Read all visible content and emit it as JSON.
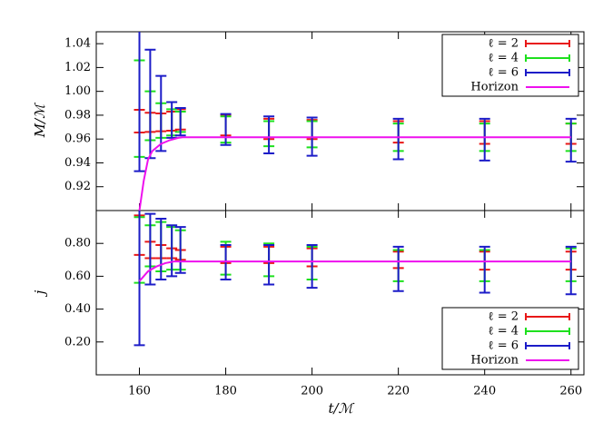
{
  "chart_data": [
    {
      "type": "errorbar",
      "ylabel": "M/ℳ",
      "xlim": [
        150,
        263
      ],
      "ylim": [
        0.9,
        1.05
      ],
      "yticks": [
        0.92,
        0.94,
        0.96,
        0.98,
        {
          "value": 1.0,
          "label": "1.00"
        },
        1.02,
        1.04
      ],
      "x": [
        160,
        162.5,
        165,
        167.5,
        169.5,
        180,
        190,
        200,
        220,
        240,
        260
      ],
      "legend": "upper right",
      "series": [
        {
          "name": "ℓ = 2",
          "color": "#e81818",
          "values": [
            0.975,
            0.974,
            0.974,
            0.975,
            0.9765,
            0.9715,
            0.9685,
            0.968,
            0.966,
            0.9655,
            0.9645
          ],
          "errors": [
            0.0095,
            0.008,
            0.0075,
            0.008,
            0.0085,
            0.0085,
            0.0085,
            0.008,
            0.009,
            0.0095,
            0.0085
          ]
        },
        {
          "name": "ℓ = 4",
          "color": "#1ee01e",
          "values": [
            0.9855,
            0.9795,
            0.9755,
            0.974,
            0.9745,
            0.968,
            0.9645,
            0.964,
            0.9615,
            0.9615,
            0.9615
          ],
          "errors": [
            0.0405,
            0.0205,
            0.0145,
            0.011,
            0.0085,
            0.011,
            0.0105,
            0.011,
            0.0115,
            0.0115,
            0.0115
          ]
        },
        {
          "name": "ℓ = 6",
          "color": "#1c1cc8",
          "values": [
            0.995,
            0.9895,
            0.9815,
            0.976,
            0.9745,
            0.968,
            0.9635,
            0.962,
            0.96,
            0.9595,
            0.959
          ],
          "errors": [
            0.062,
            0.0455,
            0.0315,
            0.015,
            0.0115,
            0.013,
            0.0155,
            0.016,
            0.017,
            0.0175,
            0.018
          ]
        },
        {
          "name": "Horizon",
          "color": "#ee10ee",
          "line": true,
          "x": [
            160,
            161,
            162,
            163,
            165,
            167,
            169,
            170,
            260
          ],
          "values": [
            0.9,
            0.925,
            0.943,
            0.95,
            0.956,
            0.959,
            0.961,
            0.9615,
            0.9615
          ]
        }
      ]
    },
    {
      "type": "errorbar",
      "ylabel": "j",
      "xlabel": "t/ℳ",
      "xlim": [
        150,
        263
      ],
      "ylim": [
        0,
        1.0
      ],
      "xticks": [
        160,
        180,
        200,
        220,
        240,
        260
      ],
      "yticks": [
        {
          "value": 0.2,
          "label": "0.20"
        },
        {
          "value": 0.4,
          "label": "0.40"
        },
        {
          "value": 0.6,
          "label": "0.60"
        },
        {
          "value": 0.8,
          "label": "0.80"
        }
      ],
      "x": [
        160,
        162.5,
        165,
        167.5,
        169.5,
        180,
        190,
        200,
        220,
        240,
        260
      ],
      "legend": "lower right",
      "series": [
        {
          "name": "ℓ = 2",
          "color": "#e81818",
          "values": [
            0.85,
            0.76,
            0.75,
            0.74,
            0.73,
            0.73,
            0.73,
            0.715,
            0.7,
            0.695,
            0.695
          ],
          "errors": [
            0.12,
            0.05,
            0.04,
            0.03,
            0.03,
            0.05,
            0.05,
            0.055,
            0.05,
            0.055,
            0.055
          ]
        },
        {
          "name": "ℓ = 4",
          "color": "#1ee01e",
          "values": [
            0.76,
            0.785,
            0.78,
            0.77,
            0.76,
            0.71,
            0.7,
            0.68,
            0.665,
            0.665,
            0.67
          ],
          "errors": [
            0.2,
            0.125,
            0.15,
            0.13,
            0.12,
            0.1,
            0.1,
            0.1,
            0.095,
            0.095,
            0.1
          ]
        },
        {
          "name": "ℓ = 6",
          "color": "#1c1cc8",
          "values": [
            0.6,
            0.765,
            0.765,
            0.755,
            0.76,
            0.685,
            0.67,
            0.66,
            0.645,
            0.64,
            0.635
          ],
          "errors": [
            0.42,
            0.215,
            0.185,
            0.155,
            0.14,
            0.105,
            0.12,
            0.13,
            0.135,
            0.14,
            0.145
          ]
        },
        {
          "name": "Horizon",
          "color": "#ee10ee",
          "line": true,
          "x": [
            160,
            162,
            164,
            166,
            168,
            170,
            260
          ],
          "values": [
            0.57,
            0.63,
            0.66,
            0.68,
            0.69,
            0.69,
            0.69
          ]
        }
      ]
    }
  ]
}
